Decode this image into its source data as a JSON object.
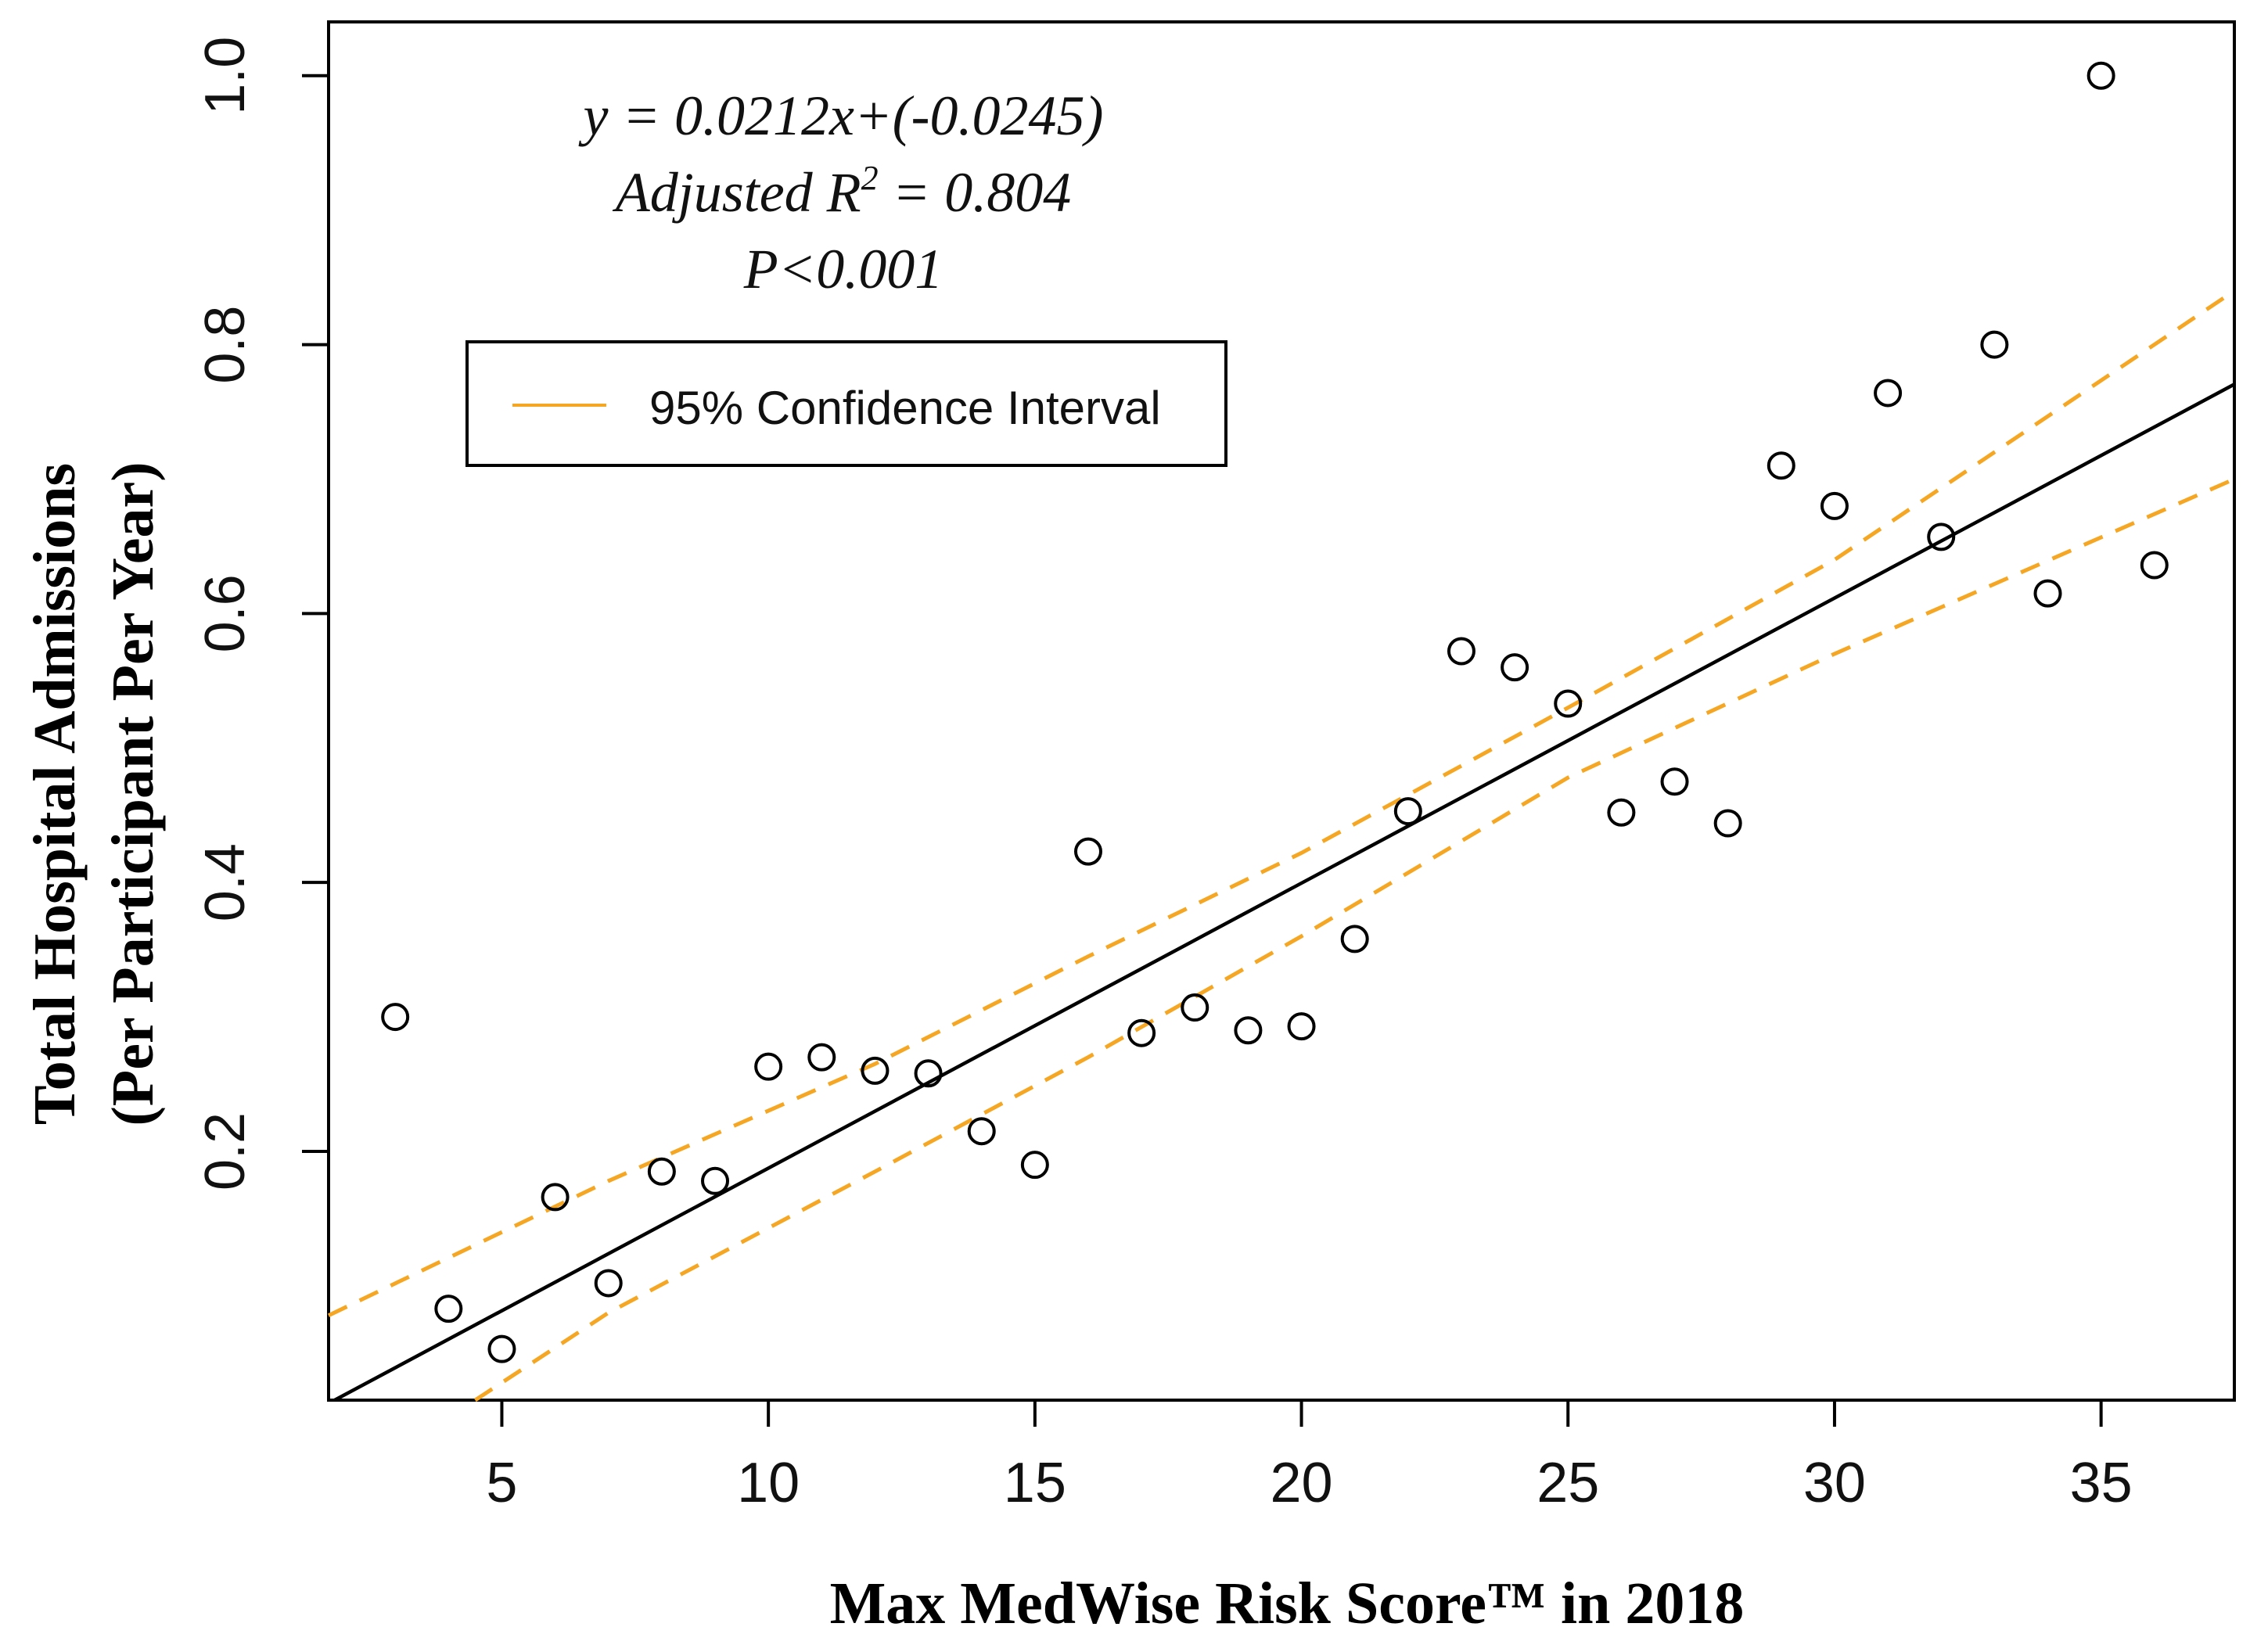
{
  "chart_data": {
    "type": "scatter",
    "xlabel": "Max MedWise Risk Score™ in 2018",
    "ylabel_line1": "Total Hospital Admissions",
    "ylabel_line2": "(Per Participant Per Year)",
    "xlim": [
      1.75,
      37.5
    ],
    "ylim": [
      0.015,
      1.04
    ],
    "x_ticks": [
      5,
      10,
      15,
      20,
      25,
      30,
      35
    ],
    "y_ticks": [
      0.2,
      0.4,
      0.6,
      0.8,
      1.0
    ],
    "x_tick_labels": [
      "5",
      "10",
      "15",
      "20",
      "25",
      "30",
      "35"
    ],
    "y_tick_labels": [
      "0.2",
      "0.4",
      "0.6",
      "0.8",
      "1.0"
    ],
    "annotation": {
      "equation": "y = 0.0212x+(-0.0245)",
      "r2_prefix": "Adjusted R",
      "r2_sup": "2",
      "r2_suffix": " = 0.804",
      "p_value": "P<0.001"
    },
    "legend": {
      "label": "95% Confidence Interval",
      "placement": "top-left"
    },
    "regression": {
      "slope": 0.0212,
      "intercept": -0.0245,
      "color": "#000000"
    },
    "ci_color": "#f5a623",
    "ci_upper": {
      "x": [
        1.75,
        7,
        12,
        16,
        20,
        25,
        30,
        37.5
      ],
      "y": [
        0.078,
        0.178,
        0.265,
        0.345,
        0.422,
        0.53,
        0.64,
        0.84
      ]
    },
    "ci_lower": {
      "x": [
        4.5,
        7,
        12,
        16,
        20,
        25,
        30,
        37.5
      ],
      "y": [
        0.015,
        0.08,
        0.185,
        0.27,
        0.36,
        0.478,
        0.57,
        0.7
      ]
    },
    "points": [
      {
        "x": 3,
        "y": 0.3
      },
      {
        "x": 4,
        "y": 0.083
      },
      {
        "x": 5,
        "y": 0.053
      },
      {
        "x": 6,
        "y": 0.166
      },
      {
        "x": 7,
        "y": 0.102
      },
      {
        "x": 8,
        "y": 0.185
      },
      {
        "x": 9,
        "y": 0.178
      },
      {
        "x": 10,
        "y": 0.263
      },
      {
        "x": 11,
        "y": 0.27
      },
      {
        "x": 12,
        "y": 0.26
      },
      {
        "x": 13,
        "y": 0.258
      },
      {
        "x": 14,
        "y": 0.215
      },
      {
        "x": 15,
        "y": 0.19
      },
      {
        "x": 16,
        "y": 0.423
      },
      {
        "x": 17,
        "y": 0.288
      },
      {
        "x": 18,
        "y": 0.307
      },
      {
        "x": 19,
        "y": 0.29
      },
      {
        "x": 20,
        "y": 0.293
      },
      {
        "x": 21,
        "y": 0.358
      },
      {
        "x": 22,
        "y": 0.453
      },
      {
        "x": 23,
        "y": 0.572
      },
      {
        "x": 24,
        "y": 0.56
      },
      {
        "x": 25,
        "y": 0.533
      },
      {
        "x": 26,
        "y": 0.452
      },
      {
        "x": 27,
        "y": 0.475
      },
      {
        "x": 28,
        "y": 0.444
      },
      {
        "x": 29,
        "y": 0.71
      },
      {
        "x": 30,
        "y": 0.68
      },
      {
        "x": 31,
        "y": 0.764
      },
      {
        "x": 32,
        "y": 0.657
      },
      {
        "x": 33,
        "y": 0.8
      },
      {
        "x": 34,
        "y": 0.615
      },
      {
        "x": 35,
        "y": 1.0
      },
      {
        "x": 36,
        "y": 0.636
      }
    ]
  }
}
